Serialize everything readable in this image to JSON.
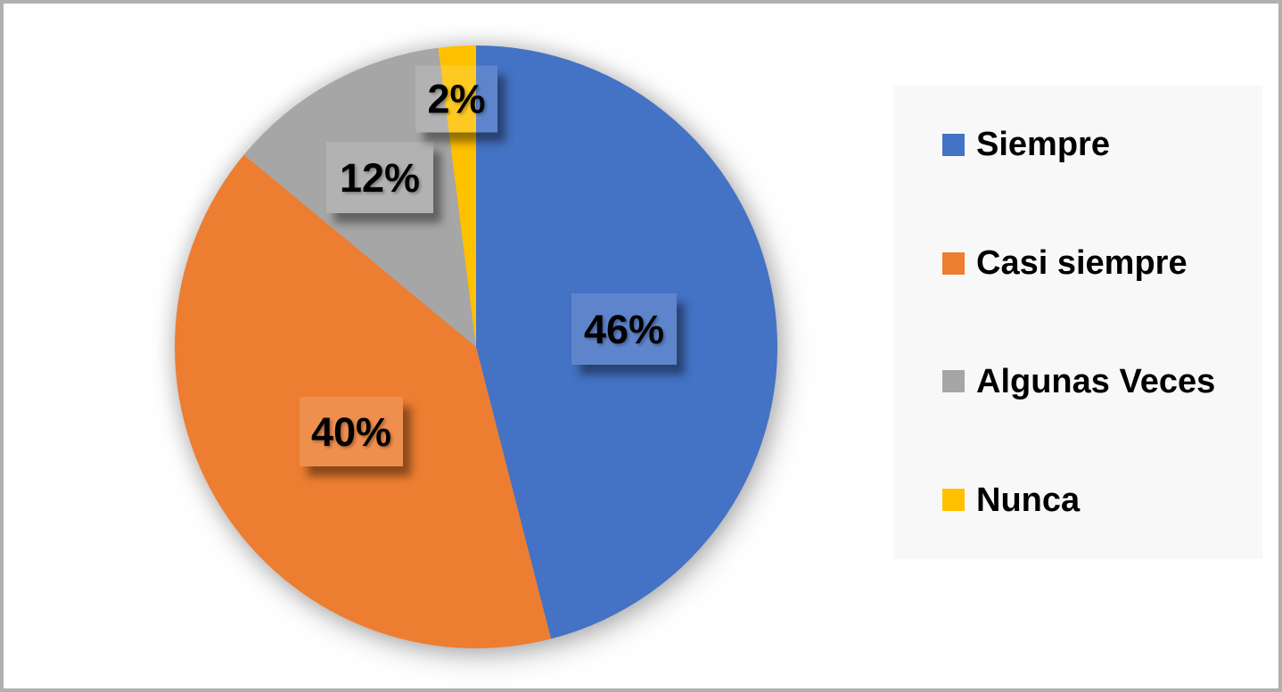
{
  "chart_data": {
    "type": "pie",
    "title": "",
    "categories": [
      "Siempre",
      "Casi siempre",
      "Algunas Veces",
      "Nunca"
    ],
    "values": [
      46,
      40,
      12,
      2
    ],
    "value_unit": "percent",
    "colors": [
      "#4472C4",
      "#ED7D31",
      "#A6A6A6",
      "#FFC000"
    ],
    "start_angle_deg": 0,
    "direction": "clockwise",
    "legend_position": "right",
    "legend_background": "#F8F8F8",
    "data_labels": [
      {
        "text": "46%",
        "category": "Siempre"
      },
      {
        "text": "40%",
        "category": "Casi siempre"
      },
      {
        "text": "12%",
        "category": "Algunas Veces"
      },
      {
        "text": "2%",
        "category": "Nunca"
      }
    ],
    "legend": {
      "items": [
        {
          "label": "Siempre"
        },
        {
          "label": "Casi siempre"
        },
        {
          "label": "Algunas Veces"
        },
        {
          "label": "Nunca"
        }
      ]
    }
  }
}
